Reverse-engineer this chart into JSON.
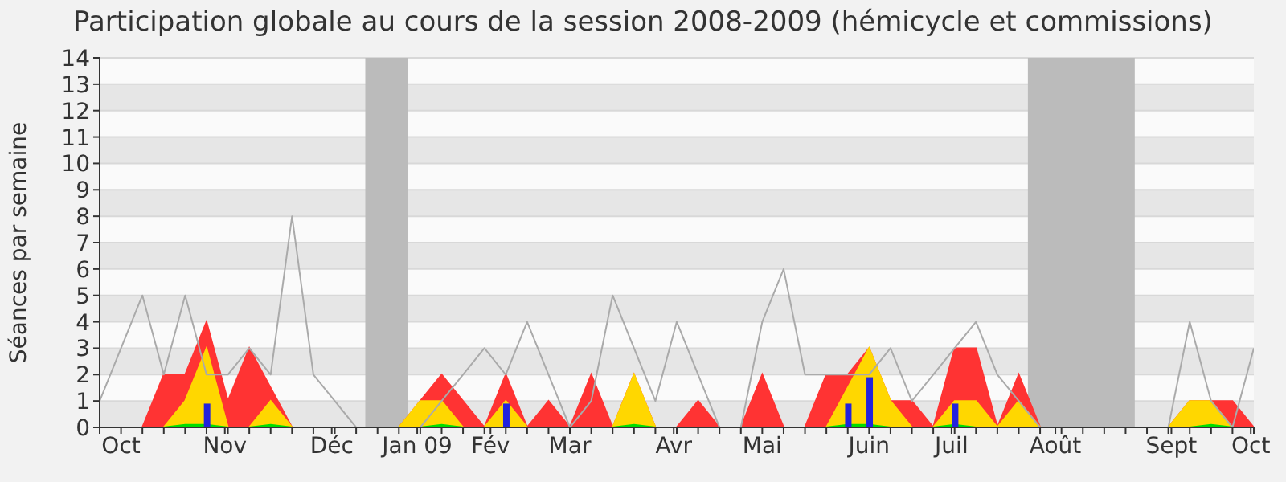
{
  "chart_data": {
    "type": "area",
    "title": "Participation globale au cours de la session 2008-2009 (hémicycle et commissions)",
    "ylabel": "Séances par semaine",
    "x": [
      "2008-10-06",
      "2008-10-13",
      "2008-10-20",
      "2008-10-27",
      "2008-11-03",
      "2008-11-10",
      "2008-11-17",
      "2008-11-24",
      "2008-12-01",
      "2008-12-08",
      "2008-12-15",
      "2008-12-22",
      "2008-12-29",
      "2009-01-05",
      "2009-01-12",
      "2009-01-19",
      "2009-01-26",
      "2009-02-02",
      "2009-02-09",
      "2009-02-16",
      "2009-02-23",
      "2009-03-02",
      "2009-03-09",
      "2009-03-16",
      "2009-03-23",
      "2009-03-30",
      "2009-04-06",
      "2009-04-13",
      "2009-04-20",
      "2009-04-27",
      "2009-05-04",
      "2009-05-11",
      "2009-05-18",
      "2009-05-25",
      "2009-06-01",
      "2009-06-08",
      "2009-06-15",
      "2009-06-22",
      "2009-06-29",
      "2009-07-06",
      "2009-07-13",
      "2009-07-20",
      "2009-07-27",
      "2009-08-03",
      "2009-08-10",
      "2009-08-17",
      "2009-08-24",
      "2009-08-31",
      "2009-09-07",
      "2009-09-14",
      "2009-09-21",
      "2009-09-28",
      "2009-10-05",
      "2009-10-12",
      "2009-10-19"
    ],
    "xlim": [
      "2008-10-06",
      "2009-10-19"
    ],
    "xticks": [
      {
        "value": "2008-10-06",
        "label": null
      },
      {
        "value": "2008-10-13",
        "label": "Oct"
      },
      {
        "value": "2008-10-20",
        "label": null
      },
      {
        "value": "2008-10-27",
        "label": null
      },
      {
        "value": "2008-11-03",
        "label": null
      },
      {
        "value": "2008-11-10",
        "label": null
      },
      {
        "value": "2008-11-16",
        "label": "Nov"
      },
      {
        "value": "2008-11-17",
        "label": null
      },
      {
        "value": "2008-11-24",
        "label": null
      },
      {
        "value": "2008-12-01",
        "label": null
      },
      {
        "value": "2008-12-08",
        "label": null
      },
      {
        "value": "2008-12-15",
        "label": null
      },
      {
        "value": "2008-12-21",
        "label": "Déc"
      },
      {
        "value": "2008-12-22",
        "label": null
      },
      {
        "value": "2008-12-29",
        "label": null
      },
      {
        "value": "2009-01-05",
        "label": null
      },
      {
        "value": "2009-01-12",
        "label": null
      },
      {
        "value": "2009-01-18",
        "label": "Jan 09"
      },
      {
        "value": "2009-01-19",
        "label": null
      },
      {
        "value": "2009-01-26",
        "label": null
      },
      {
        "value": "2009-02-02",
        "label": null
      },
      {
        "value": "2009-02-09",
        "label": null
      },
      {
        "value": "2009-02-11",
        "label": "Fév"
      },
      {
        "value": "2009-02-16",
        "label": null
      },
      {
        "value": "2009-02-23",
        "label": null
      },
      {
        "value": "2009-03-02",
        "label": null
      },
      {
        "value": "2009-03-09",
        "label": "Mar"
      },
      {
        "value": "2009-03-16",
        "label": null
      },
      {
        "value": "2009-03-23",
        "label": null
      },
      {
        "value": "2009-03-30",
        "label": null
      },
      {
        "value": "2009-04-06",
        "label": null
      },
      {
        "value": "2009-04-12",
        "label": "Avr"
      },
      {
        "value": "2009-04-13",
        "label": null
      },
      {
        "value": "2009-04-20",
        "label": null
      },
      {
        "value": "2009-04-27",
        "label": null
      },
      {
        "value": "2009-05-04",
        "label": null
      },
      {
        "value": "2009-05-11",
        "label": "Mai"
      },
      {
        "value": "2009-05-18",
        "label": null
      },
      {
        "value": "2009-05-25",
        "label": null
      },
      {
        "value": "2009-06-01",
        "label": null
      },
      {
        "value": "2009-06-08",
        "label": null
      },
      {
        "value": "2009-06-15",
        "label": "Juin"
      },
      {
        "value": "2009-06-22",
        "label": null
      },
      {
        "value": "2009-06-29",
        "label": null
      },
      {
        "value": "2009-07-06",
        "label": null
      },
      {
        "value": "2009-07-12",
        "label": "Juil"
      },
      {
        "value": "2009-07-13",
        "label": null
      },
      {
        "value": "2009-07-20",
        "label": null
      },
      {
        "value": "2009-07-27",
        "label": null
      },
      {
        "value": "2009-08-03",
        "label": null
      },
      {
        "value": "2009-08-10",
        "label": null
      },
      {
        "value": "2009-08-15",
        "label": "Août"
      },
      {
        "value": "2009-08-17",
        "label": null
      },
      {
        "value": "2009-08-24",
        "label": null
      },
      {
        "value": "2009-08-31",
        "label": null
      },
      {
        "value": "2009-09-07",
        "label": null
      },
      {
        "value": "2009-09-14",
        "label": null
      },
      {
        "value": "2009-09-21",
        "label": null
      },
      {
        "value": "2009-09-22",
        "label": "Sept"
      },
      {
        "value": "2009-09-28",
        "label": null
      },
      {
        "value": "2009-10-05",
        "label": null
      },
      {
        "value": "2009-10-12",
        "label": null
      },
      {
        "value": "2009-10-18",
        "label": "Oct"
      },
      {
        "value": "2009-10-19",
        "label": null
      }
    ],
    "ylim": [
      0,
      14
    ],
    "yticks": [
      0,
      1,
      2,
      3,
      4,
      5,
      6,
      7,
      8,
      9,
      10,
      11,
      12,
      13,
      14
    ],
    "grid": "y",
    "bands": [
      {
        "axis": "x",
        "from": "2009-01-01",
        "to": "2009-01-15",
        "color": "#bbbbbb"
      },
      {
        "axis": "x",
        "from": "2009-08-06",
        "to": "2009-09-10",
        "color": "#bbbbbb"
      }
    ],
    "series": [
      {
        "color": "#ff3333",
        "values": [
          0,
          0,
          0,
          2,
          2,
          4,
          1,
          3,
          1.5,
          0,
          0,
          0,
          0,
          0,
          0,
          1,
          2,
          1,
          0,
          2,
          0,
          1,
          0,
          2,
          0,
          2,
          0,
          0,
          1,
          0,
          0,
          2,
          0,
          0,
          2,
          2,
          3,
          1,
          1,
          0,
          3,
          3,
          0,
          2,
          0,
          0,
          0,
          0,
          0,
          0,
          0,
          1,
          1,
          1,
          0
        ]
      },
      {
        "color": "#ffd700",
        "values": [
          0,
          0,
          0,
          0,
          1,
          3,
          0,
          0,
          1,
          0,
          0,
          0,
          0,
          0,
          0,
          1,
          1,
          0,
          0,
          1,
          0,
          0,
          0,
          0,
          0,
          2,
          0,
          0,
          0,
          0,
          0,
          0,
          0,
          0,
          0,
          1.5,
          3,
          1,
          0,
          0,
          1,
          1,
          0,
          1,
          0,
          0,
          0,
          0,
          0,
          0,
          0,
          1,
          1,
          0,
          0
        ]
      },
      {
        "color": "#00dd00",
        "values": [
          0,
          0,
          0,
          0,
          0.1,
          0.1,
          0,
          0,
          0.1,
          0,
          0,
          0,
          0,
          0,
          0,
          0,
          0.1,
          0,
          0,
          0,
          0,
          0,
          0,
          0,
          0,
          0.1,
          0,
          0,
          0,
          0,
          0,
          0,
          0,
          0,
          0,
          0.1,
          0.1,
          0,
          0,
          0,
          0.1,
          0,
          0,
          0,
          0,
          0,
          0,
          0,
          0,
          0,
          0,
          0,
          0.1,
          0,
          0
        ]
      },
      {
        "type": "bar",
        "color": "#2222dd",
        "values": [
          null,
          null,
          null,
          null,
          null,
          0.9,
          null,
          null,
          null,
          null,
          null,
          null,
          null,
          null,
          null,
          null,
          null,
          null,
          null,
          0.9,
          null,
          null,
          null,
          null,
          null,
          null,
          null,
          null,
          null,
          null,
          null,
          null,
          null,
          null,
          null,
          0.9,
          1.9,
          null,
          null,
          null,
          0.9,
          null,
          null,
          null,
          null,
          null,
          null,
          null,
          null,
          null,
          null,
          null,
          null,
          null,
          null
        ]
      },
      {
        "type": "line",
        "color": "#aaaaaa",
        "values": [
          1,
          3,
          5,
          2,
          5,
          2,
          2,
          3,
          2,
          8,
          2,
          1,
          0,
          0,
          0,
          0,
          1,
          2,
          3,
          2,
          4,
          2,
          0,
          1,
          5,
          3,
          1,
          4,
          2,
          0,
          0,
          4,
          6,
          2,
          2,
          2,
          2,
          3,
          1,
          2,
          3,
          4,
          2,
          1,
          0,
          0,
          0,
          0,
          0,
          0,
          0,
          4,
          1,
          0,
          3
        ]
      }
    ]
  }
}
